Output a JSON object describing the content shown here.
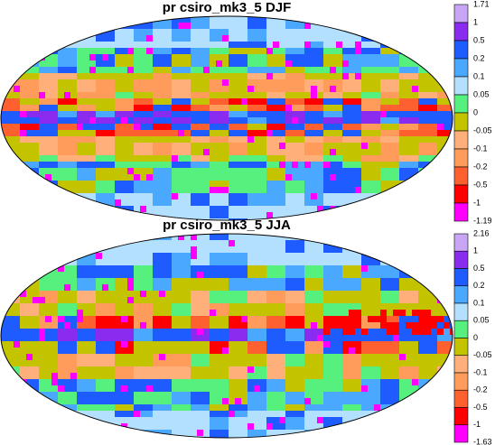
{
  "maps": [
    {
      "title": "pr csiro_mk3_5 DJF",
      "colorbar": {
        "labels": [
          "1.71",
          "1",
          "0.5",
          "0.2",
          "0.1",
          "0.05",
          "0",
          "-0.05",
          "-0.1",
          "-0.2",
          "-0.5",
          "-1",
          "-1.19"
        ]
      }
    },
    {
      "title": "pr csiro_mk3_5 JJA",
      "colorbar": {
        "labels": [
          "2.16",
          "1",
          "0.5",
          "0.2",
          "0.1",
          "0.05",
          "0",
          "-0.05",
          "-0.1",
          "-0.2",
          "-0.5",
          "-1",
          "-1.63"
        ]
      }
    }
  ],
  "palette": [
    "#c9a5f5",
    "#8a2cf0",
    "#1f5cff",
    "#4aa8ff",
    "#b4e0ff",
    "#55f07e",
    "#c3c300",
    "#ffb07a",
    "#ff9c5c",
    "#ff6030",
    "#ff0000",
    "#ff00ff"
  ]
}
